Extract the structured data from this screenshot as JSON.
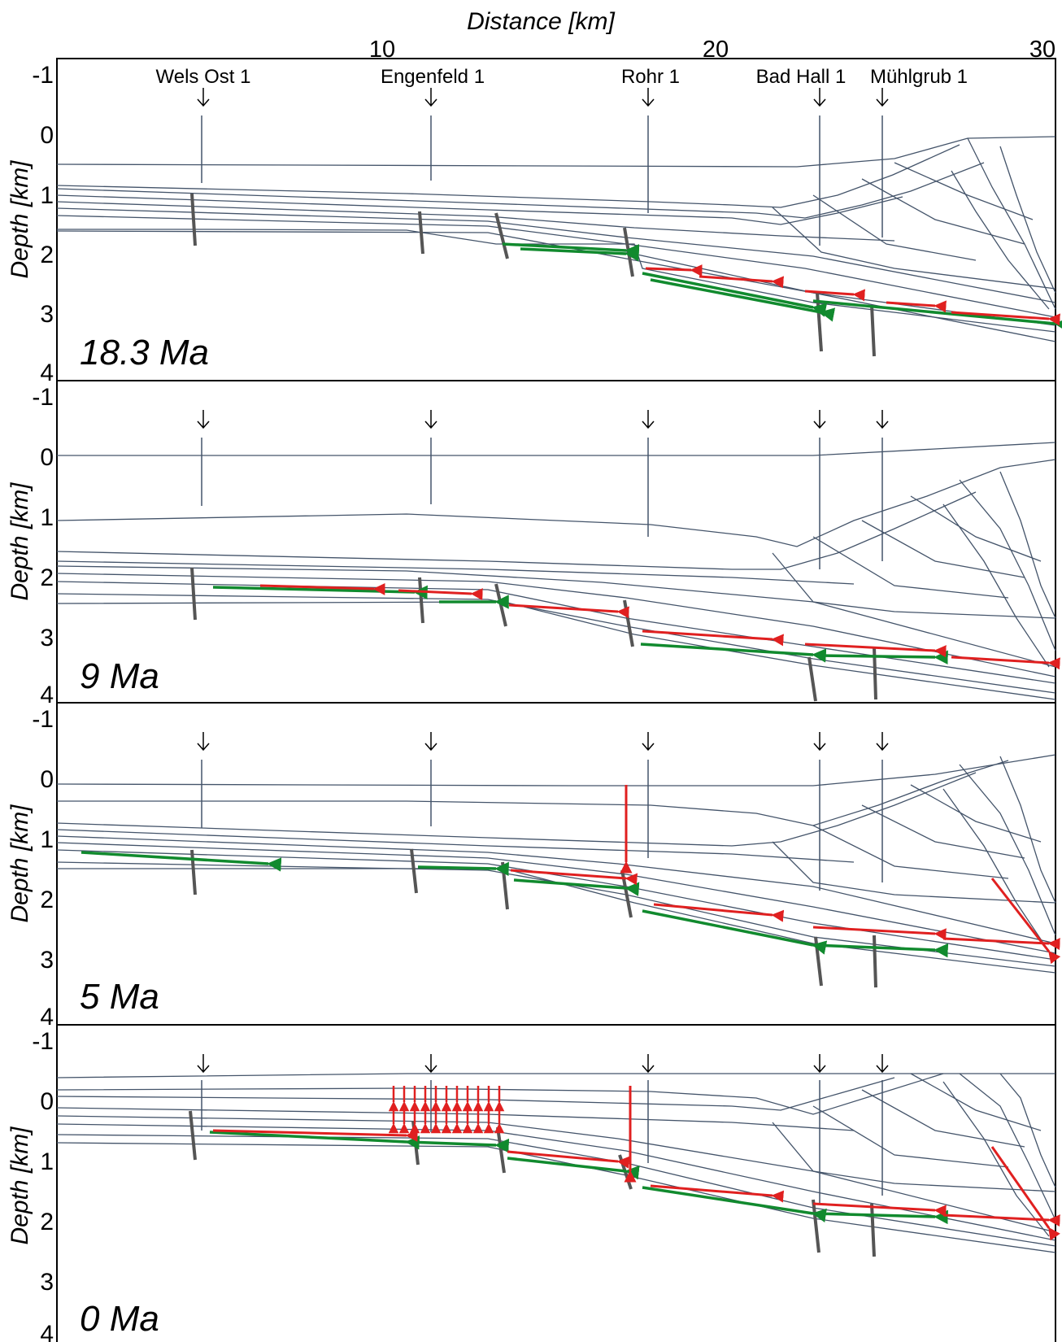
{
  "figure": {
    "x_axis": {
      "label": "Distance [km]",
      "ticks": [
        10,
        20,
        30
      ]
    },
    "y_axis": {
      "label": "Depth [km]",
      "ticks": [
        -1,
        0,
        1,
        2,
        3,
        4
      ]
    },
    "wells": [
      {
        "name": "Wels Ost 1",
        "distance_km": 3.6
      },
      {
        "name": "Engenfeld 1",
        "distance_km": 10.8
      },
      {
        "name": "Rohr 1",
        "distance_km": 17.4
      },
      {
        "name": "Bad Hall 1",
        "distance_km": 22.6
      },
      {
        "name": "Mühlgrub 1",
        "distance_km": 24.6
      }
    ],
    "panels": [
      {
        "label": "18.3 Ma"
      },
      {
        "label": "9 Ma"
      },
      {
        "label": "5 Ma"
      },
      {
        "label": "0 Ma"
      }
    ],
    "colors": {
      "strata": "#44546a",
      "fault": "#555555",
      "red_arrow": "#e02020",
      "green_arrow": "#118a2e",
      "frame": "#000000"
    },
    "icons": {
      "well_marker": "down-arrow-icon",
      "flow_vector": "arrow-icon"
    }
  }
}
